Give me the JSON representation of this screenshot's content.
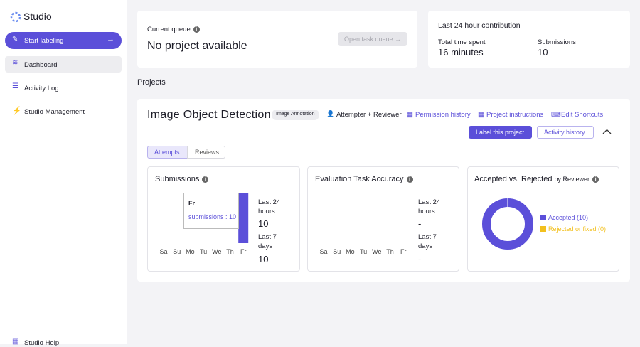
{
  "sidebar": {
    "brand": "Studio",
    "items": [
      "Start labeling",
      "Dashboard",
      "Activity Log",
      "Studio Management"
    ],
    "help": "Studio Help"
  },
  "queue": {
    "label": "Current queue",
    "status": "No project available",
    "button": "Open task queue"
  },
  "contribution": {
    "title": "Last 24 hour contribution",
    "time_label": "Total time spent",
    "time_value": "16 minutes",
    "sub_label": "Submissions",
    "sub_value": "10"
  },
  "projects_heading": "Projects",
  "project": {
    "name": "Image Object Detection",
    "badge": "Image Annotation",
    "role": "Attempter + Reviewer",
    "links": [
      "Permission history",
      "Project instructions",
      "Edit Shortcuts"
    ],
    "primary_button": "Label this project",
    "secondary_button": "Activity history",
    "tabs": [
      "Attempts",
      "Reviews"
    ]
  },
  "submissions": {
    "title": "Submissions",
    "chart": {
      "type": "bar",
      "categories": [
        "Sa",
        "Su",
        "Mo",
        "Tu",
        "We",
        "Th",
        "Fr"
      ],
      "values": [
        0,
        0,
        0,
        0,
        0,
        0,
        10
      ],
      "color": "#5b4fd9"
    },
    "tooltip_day": "Fr",
    "tooltip_text": "submissions : 10",
    "last24_label": "Last 24 hours",
    "last24_value": "10",
    "last7_label": "Last 7 days",
    "last7_value": "10"
  },
  "accuracy": {
    "title": "Evaluation Task Accuracy",
    "chart": {
      "type": "bar",
      "categories": [
        "Sa",
        "Su",
        "Mo",
        "Tu",
        "We",
        "Th",
        "Fr"
      ]
    },
    "last24_label": "Last 24 hours",
    "last24_value": "-",
    "last7_label": "Last 7 days",
    "last7_value": "-"
  },
  "accepted": {
    "title": "Accepted vs. Rejected",
    "subtitle": "by Reviewer",
    "chart": {
      "type": "pie",
      "series": [
        {
          "name": "Accepted (10)",
          "value": 10,
          "color": "#5b4fd9"
        },
        {
          "name": "Rejected or fixed (0)",
          "value": 0,
          "color": "#f2c01e"
        }
      ]
    }
  }
}
